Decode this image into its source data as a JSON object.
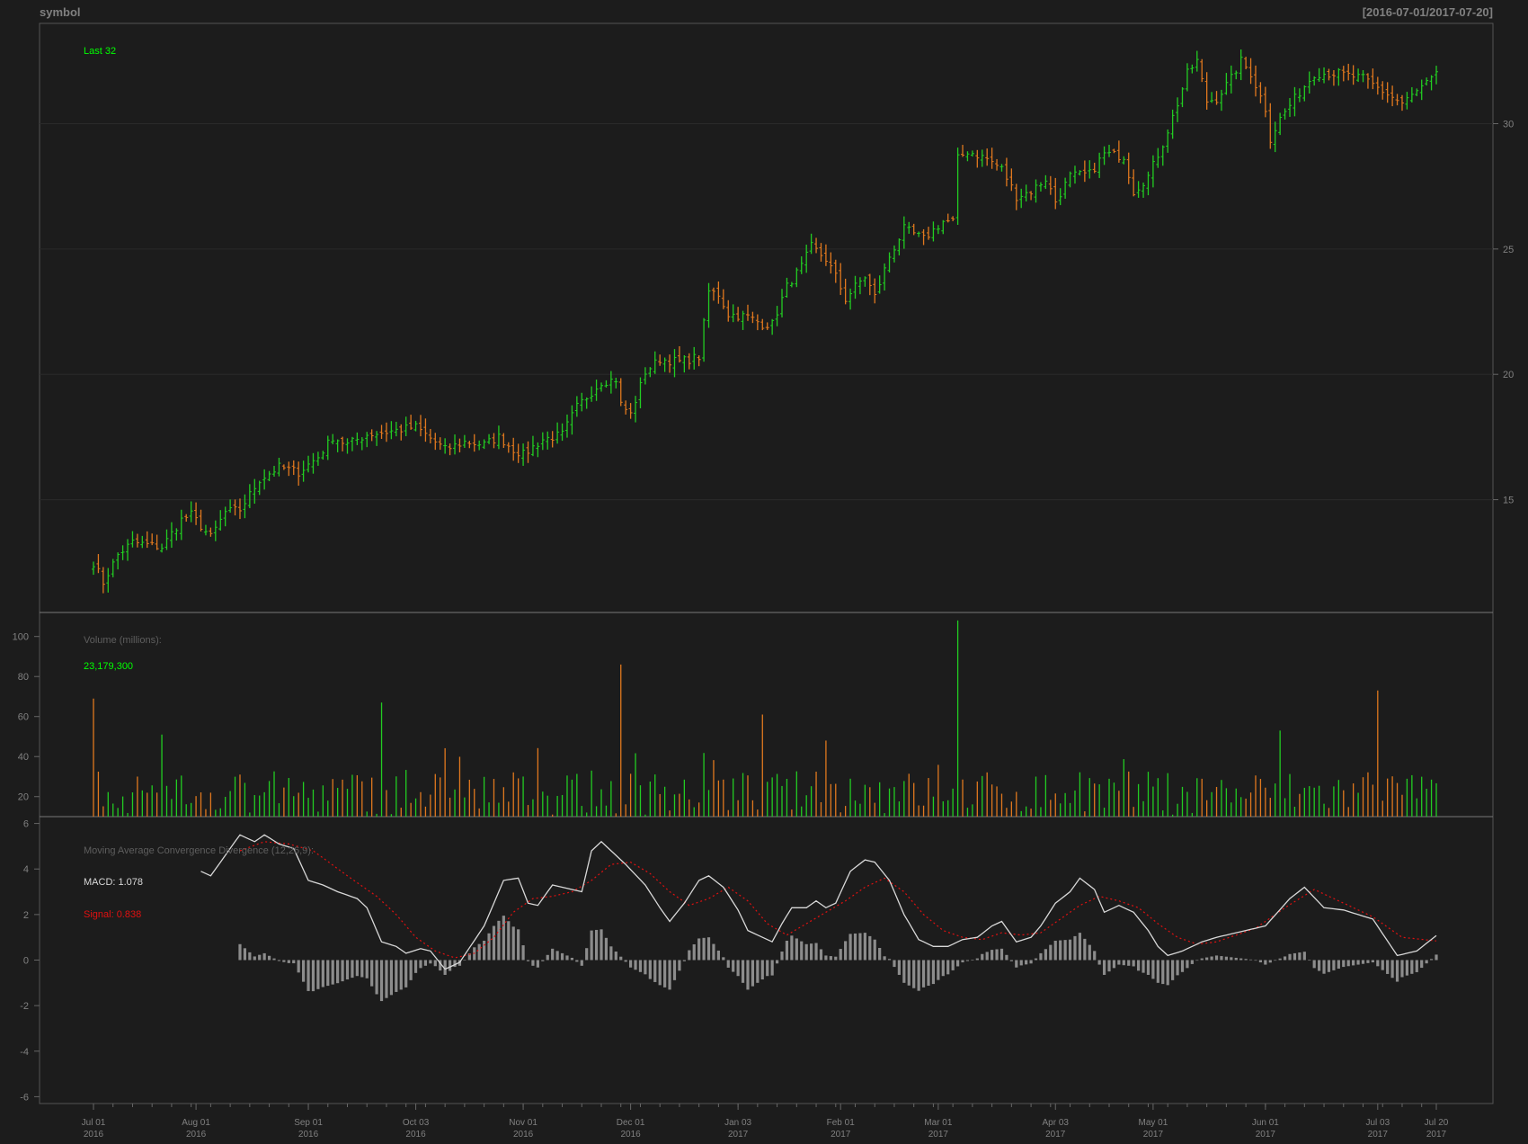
{
  "header": {
    "symbol": "symbol",
    "range": "[2016-07-01/2017-07-20]"
  },
  "price_panel": {
    "last_label": "Last 32",
    "ylim": [
      10.5,
      34
    ],
    "yticks": [
      "15",
      "20",
      "25",
      "30"
    ]
  },
  "volume_panel": {
    "title": "Volume (millions):",
    "last_value": "23,179,300",
    "ylim": [
      10,
      112
    ],
    "yticks": [
      "20",
      "40",
      "60",
      "80",
      "100"
    ]
  },
  "macd_panel": {
    "title": "Moving Average Convergence Divergence (12,26,9):",
    "macd_label": "MACD: 1.078",
    "signal_label": "Signal: 0.838",
    "ylim": [
      -6.3,
      6.3
    ],
    "yticks": [
      "6",
      "4",
      "2",
      "0",
      "-2",
      "-4",
      "-6"
    ]
  },
  "x_axis": {
    "ticks": [
      {
        "line1": "Jul 01",
        "line2": "2016",
        "index": 0
      },
      {
        "line1": "Aug 01",
        "line2": "2016",
        "index": 21
      },
      {
        "line1": "Sep 01",
        "line2": "2016",
        "index": 44
      },
      {
        "line1": "Oct 03",
        "line2": "2016",
        "index": 66
      },
      {
        "line1": "Nov 01",
        "line2": "2016",
        "index": 88
      },
      {
        "line1": "Dec 01",
        "line2": "2016",
        "index": 110
      },
      {
        "line1": "Jan 03",
        "line2": "2017",
        "index": 132
      },
      {
        "line1": "Feb 01",
        "line2": "2017",
        "index": 153
      },
      {
        "line1": "Mar 01",
        "line2": "2017",
        "index": 173
      },
      {
        "line1": "Apr 03",
        "line2": "2017",
        "index": 197
      },
      {
        "line1": "May 01",
        "line2": "2017",
        "index": 217
      },
      {
        "line1": "Jun 01",
        "line2": "2017",
        "index": 240
      },
      {
        "line1": "Jul 03",
        "line2": "2017",
        "index": 263
      },
      {
        "line1": "Jul 20",
        "line2": "2017",
        "index": 275
      }
    ]
  },
  "colors": {
    "background": "#1c1c1c",
    "up": "#22cc22",
    "down": "#e0781e",
    "axis": "#666666",
    "grid": "#2a2a2a",
    "text": "#808080",
    "macd": "#d8d8d8",
    "signal": "#e01010",
    "histogram": "#8c8c8c",
    "highlight": "#00ff00"
  },
  "chart_data": {
    "type": "bar",
    "n": 276,
    "close_anchors": [
      [
        0,
        12.5
      ],
      [
        2,
        11.7
      ],
      [
        5,
        12.8
      ],
      [
        8,
        13.3
      ],
      [
        14,
        13.1
      ],
      [
        18,
        14.2
      ],
      [
        20,
        14.4
      ],
      [
        24,
        13.5
      ],
      [
        27,
        14.5
      ],
      [
        30,
        14.6
      ],
      [
        34,
        15.8
      ],
      [
        38,
        16.3
      ],
      [
        42,
        16.1
      ],
      [
        46,
        16.7
      ],
      [
        49,
        17.5
      ],
      [
        52,
        17.2
      ],
      [
        56,
        17.6
      ],
      [
        60,
        17.7
      ],
      [
        63,
        17.8
      ],
      [
        66,
        17.9
      ],
      [
        68,
        17.6
      ],
      [
        70,
        17.3
      ],
      [
        72,
        17.0
      ],
      [
        76,
        17.3
      ],
      [
        80,
        17.2
      ],
      [
        83,
        17.5
      ],
      [
        86,
        17.0
      ],
      [
        88,
        16.8
      ],
      [
        92,
        17.4
      ],
      [
        96,
        17.6
      ],
      [
        99,
        18.7
      ],
      [
        102,
        19.3
      ],
      [
        104,
        19.7
      ],
      [
        107,
        19.8
      ],
      [
        108,
        18.8
      ],
      [
        110,
        18.4
      ],
      [
        113,
        20.1
      ],
      [
        116,
        20.6
      ],
      [
        120,
        20.5
      ],
      [
        124,
        20.7
      ],
      [
        126,
        23.3
      ],
      [
        128,
        23.2
      ],
      [
        130,
        22.4
      ],
      [
        134,
        22.3
      ],
      [
        137,
        22.0
      ],
      [
        139,
        22.0
      ],
      [
        142,
        23.5
      ],
      [
        145,
        24.3
      ],
      [
        147,
        25.1
      ],
      [
        150,
        24.6
      ],
      [
        152,
        23.9
      ],
      [
        154,
        23.0
      ],
      [
        156,
        23.5
      ],
      [
        158,
        23.9
      ],
      [
        160,
        23.1
      ],
      [
        163,
        24.7
      ],
      [
        166,
        25.8
      ],
      [
        170,
        25.4
      ],
      [
        174,
        26.1
      ],
      [
        176,
        26.1
      ],
      [
        177,
        28.6
      ],
      [
        179,
        28.9
      ],
      [
        183,
        28.6
      ],
      [
        186,
        28.2
      ],
      [
        189,
        27.1
      ],
      [
        192,
        27.3
      ],
      [
        195,
        27.8
      ],
      [
        197,
        26.9
      ],
      [
        200,
        27.9
      ],
      [
        204,
        28.0
      ],
      [
        207,
        28.8
      ],
      [
        211,
        28.7
      ],
      [
        213,
        27.3
      ],
      [
        216,
        27.9
      ],
      [
        219,
        29.2
      ],
      [
        222,
        30.8
      ],
      [
        224,
        32.0
      ],
      [
        226,
        32.5
      ],
      [
        228,
        30.9
      ],
      [
        230,
        31.0
      ],
      [
        233,
        31.8
      ],
      [
        235,
        32.5
      ],
      [
        237,
        32.0
      ],
      [
        240,
        30.6
      ],
      [
        241,
        29.4
      ],
      [
        243,
        30.2
      ],
      [
        246,
        31.0
      ],
      [
        250,
        32.0
      ],
      [
        255,
        32.0
      ],
      [
        260,
        31.8
      ],
      [
        268,
        30.8
      ],
      [
        275,
        31.9
      ]
    ],
    "volume_spikes": [
      [
        0,
        69
      ],
      [
        14,
        51
      ],
      [
        59,
        67
      ],
      [
        108,
        86
      ],
      [
        137,
        61
      ],
      [
        150,
        48
      ],
      [
        177,
        108
      ],
      [
        243,
        53
      ],
      [
        263,
        73
      ]
    ],
    "volume_base": 22,
    "macd_anchors": [
      [
        22,
        3.9
      ],
      [
        24,
        3.7
      ],
      [
        27,
        4.6
      ],
      [
        30,
        5.5
      ],
      [
        33,
        5.2
      ],
      [
        35,
        5.5
      ],
      [
        38,
        5.1
      ],
      [
        41,
        4.9
      ],
      [
        44,
        3.5
      ],
      [
        47,
        3.3
      ],
      [
        50,
        3.0
      ],
      [
        54,
        2.7
      ],
      [
        56,
        2.3
      ],
      [
        59,
        0.8
      ],
      [
        62,
        0.6
      ],
      [
        64,
        0.3
      ],
      [
        67,
        0.5
      ],
      [
        69,
        0.4
      ],
      [
        72,
        -0.4
      ],
      [
        75,
        -0.1
      ],
      [
        80,
        1.5
      ],
      [
        84,
        3.5
      ],
      [
        87,
        3.6
      ],
      [
        89,
        2.5
      ],
      [
        91,
        2.4
      ],
      [
        94,
        3.3
      ],
      [
        96,
        3.2
      ],
      [
        100,
        3.0
      ],
      [
        102,
        4.8
      ],
      [
        104,
        5.2
      ],
      [
        106,
        4.8
      ],
      [
        109,
        4.2
      ],
      [
        113,
        3.3
      ],
      [
        116,
        2.3
      ],
      [
        118,
        1.7
      ],
      [
        121,
        2.5
      ],
      [
        124,
        3.5
      ],
      [
        126,
        3.7
      ],
      [
        129,
        3.2
      ],
      [
        132,
        2.2
      ],
      [
        134,
        1.3
      ],
      [
        137,
        1.0
      ],
      [
        139,
        0.8
      ],
      [
        141,
        1.6
      ],
      [
        143,
        2.3
      ],
      [
        146,
        2.3
      ],
      [
        148,
        2.6
      ],
      [
        150,
        2.3
      ],
      [
        152,
        2.5
      ],
      [
        155,
        3.9
      ],
      [
        158,
        4.4
      ],
      [
        160,
        4.3
      ],
      [
        163,
        3.5
      ],
      [
        166,
        2.0
      ],
      [
        169,
        0.9
      ],
      [
        172,
        0.6
      ],
      [
        175,
        0.6
      ],
      [
        178,
        0.9
      ],
      [
        181,
        1.0
      ],
      [
        184,
        1.5
      ],
      [
        186,
        1.7
      ],
      [
        189,
        0.8
      ],
      [
        192,
        1.0
      ],
      [
        194,
        1.5
      ],
      [
        197,
        2.5
      ],
      [
        200,
        3.0
      ],
      [
        202,
        3.6
      ],
      [
        205,
        3.1
      ],
      [
        207,
        2.1
      ],
      [
        210,
        2.4
      ],
      [
        213,
        2.1
      ],
      [
        216,
        1.3
      ],
      [
        218,
        0.6
      ],
      [
        220,
        0.2
      ],
      [
        223,
        0.4
      ],
      [
        227,
        0.8
      ],
      [
        230,
        1.0
      ]
    ],
    "signal_anchors": [
      [
        30,
        4.8
      ],
      [
        35,
        5.2
      ],
      [
        40,
        5.1
      ],
      [
        45,
        4.8
      ],
      [
        52,
        3.7
      ],
      [
        58,
        2.8
      ],
      [
        62,
        2.0
      ],
      [
        66,
        1.0
      ],
      [
        70,
        0.4
      ],
      [
        74,
        0.1
      ],
      [
        78,
        0.3
      ],
      [
        82,
        1.0
      ],
      [
        86,
        2.1
      ],
      [
        90,
        2.7
      ],
      [
        94,
        2.8
      ],
      [
        98,
        3.0
      ],
      [
        102,
        3.5
      ],
      [
        106,
        4.2
      ],
      [
        110,
        4.3
      ],
      [
        114,
        3.8
      ],
      [
        118,
        3.0
      ],
      [
        122,
        2.4
      ],
      [
        126,
        2.7
      ],
      [
        130,
        3.2
      ],
      [
        134,
        2.6
      ],
      [
        138,
        1.6
      ],
      [
        142,
        1.1
      ],
      [
        146,
        1.6
      ],
      [
        150,
        2.1
      ],
      [
        154,
        2.6
      ],
      [
        158,
        3.2
      ],
      [
        162,
        3.6
      ],
      [
        166,
        3.0
      ],
      [
        170,
        2.0
      ],
      [
        174,
        1.3
      ],
      [
        178,
        1.0
      ],
      [
        182,
        0.9
      ],
      [
        186,
        1.2
      ],
      [
        190,
        1.1
      ],
      [
        194,
        1.2
      ],
      [
        198,
        1.8
      ],
      [
        202,
        2.4
      ],
      [
        206,
        2.8
      ],
      [
        210,
        2.6
      ],
      [
        214,
        2.3
      ],
      [
        218,
        1.6
      ],
      [
        222,
        1.0
      ],
      [
        226,
        0.7
      ],
      [
        230,
        0.8
      ]
    ],
    "macd_start_index": 22,
    "signal_start_index": 30,
    "histogram_start_index": 30
  }
}
